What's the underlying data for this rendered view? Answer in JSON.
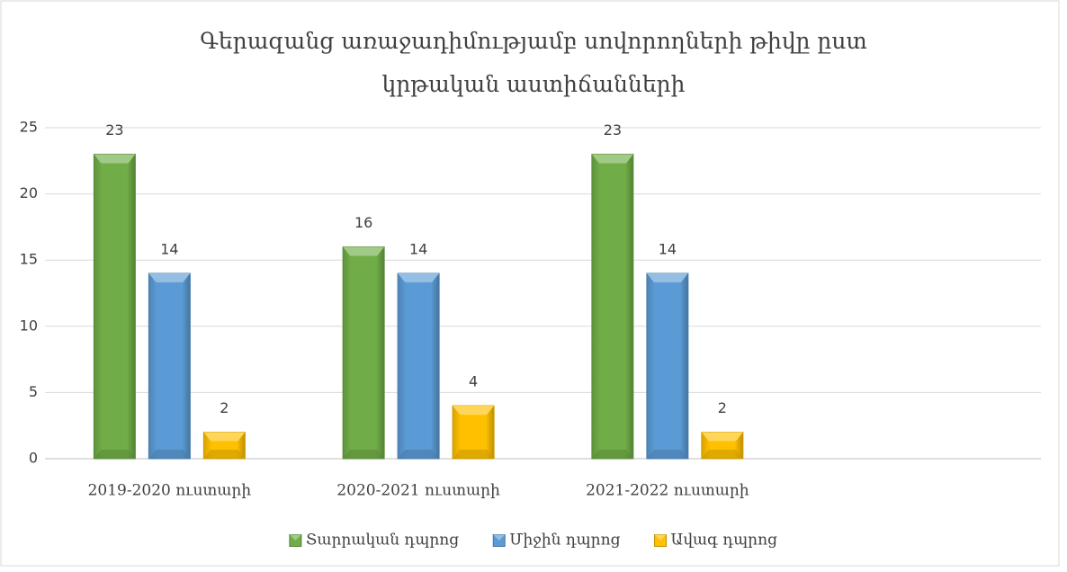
{
  "chart_data": {
    "type": "bar",
    "title": "Գերազանց առաջադիմությամբ սովորողների թիվը ըստ կրթական աստիճանների",
    "categories": [
      "2019-2020 ուստարի",
      "2020-2021 ուստարի",
      "2021-2022 ուստարի",
      null
    ],
    "series": [
      {
        "name": "Տարրական դպրոց",
        "color": "#70ad47",
        "values": [
          23,
          16,
          23,
          null
        ]
      },
      {
        "name": "Միջին դպրոց",
        "color": "#5b9bd5",
        "values": [
          14,
          14,
          14,
          null
        ]
      },
      {
        "name": "Ավագ դպրոց",
        "color": "#ffc000",
        "values": [
          2,
          4,
          2,
          null
        ]
      }
    ],
    "ylim": [
      0,
      25
    ],
    "yticks": [
      0,
      5,
      10,
      15,
      20,
      25
    ],
    "grid": true,
    "legend": "bottom"
  }
}
